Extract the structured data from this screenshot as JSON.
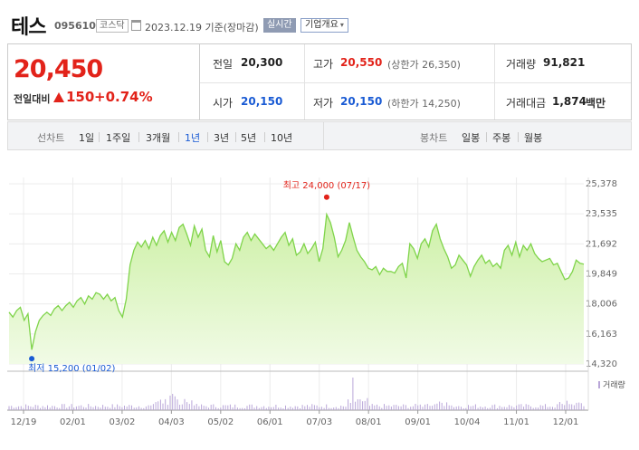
{
  "header": {
    "name": "테스",
    "code": "095610",
    "market": "코스닥",
    "date": "2023.12.19 기준(장마감)",
    "realtime": "실시간",
    "company_overview": "기업개요"
  },
  "summary": {
    "price": "20,450",
    "change_label": "전일대비",
    "change": "150",
    "change_pct": "+0.74%",
    "prev_close": {
      "label": "전일",
      "value": "20,300"
    },
    "high": {
      "label": "고가",
      "value": "20,550",
      "sub": "(상한가 26,350)"
    },
    "volume": {
      "label": "거래량",
      "value": "91,821"
    },
    "open": {
      "label": "시가",
      "value": "20,150"
    },
    "low": {
      "label": "저가",
      "value": "20,150",
      "sub": "(하한가 14,250)"
    },
    "amount": {
      "label": "거래대금",
      "value": "1,874",
      "unit": "백만"
    }
  },
  "periods": {
    "line_label": "선차트",
    "line_items": [
      "1일",
      "1주일",
      "3개월",
      "1년",
      "3년",
      "5년",
      "10년"
    ],
    "active": "1년",
    "candle_label": "봉차트",
    "candle_items": [
      "일봉",
      "주봉",
      "월봉"
    ]
  },
  "colors": {
    "up": "#e2231a",
    "down": "#1a5bd4",
    "line": "#7fd44a",
    "fill_top": "#cdf0a6",
    "fill_bottom": "#f1fbe6",
    "volume": "#b9a6d8"
  },
  "chart_data": {
    "type": "area",
    "ylim": [
      14320,
      25378
    ],
    "yticks": [
      "25,378",
      "23,535",
      "21,692",
      "19,849",
      "18,006",
      "16,163",
      "14,320"
    ],
    "xticks": [
      "12/19",
      "02/01",
      "03/02",
      "04/03",
      "05/02",
      "06/01",
      "07/03",
      "08/01",
      "09/01",
      "10/04",
      "11/01",
      "12/01"
    ],
    "volume_label": "거래량",
    "max_annotation": "최고 24,000 (07/17)",
    "min_annotation": "최저 15,200 (01/02)",
    "series": [
      {
        "values": [
          17500,
          17200,
          17600,
          17800,
          17000,
          17400,
          15200,
          16300,
          17000,
          17300,
          17500,
          17300,
          17700,
          17900,
          17600,
          17900,
          18100,
          17800,
          18200,
          18400,
          18000,
          18500,
          18300,
          18700,
          18600,
          18300,
          18600,
          18200,
          18400,
          17600,
          17200,
          18300,
          20400,
          21300,
          21800,
          21500,
          21900,
          21400,
          22100,
          21600,
          22200,
          22500,
          21800,
          22400,
          21900,
          22700,
          22900,
          22300,
          21600,
          22800,
          22100,
          22600,
          21300,
          20900,
          22200,
          21200,
          21900,
          20600,
          20400,
          20800,
          21700,
          21300,
          22100,
          22400,
          21900,
          22300,
          22000,
          21700,
          21400,
          21600,
          21300,
          21700,
          22100,
          22400,
          21600,
          22000,
          21000,
          21200,
          21700,
          21100,
          21400,
          21800,
          20600,
          21400,
          23500,
          23000,
          22100,
          20900,
          21300,
          21900,
          23000,
          22100,
          21300,
          20900,
          20600,
          20200,
          20100,
          20300,
          19800,
          20200,
          20000,
          20000,
          19900,
          20300,
          20500,
          19600,
          21700,
          21400,
          20800,
          21700,
          22000,
          21500,
          22500,
          22900,
          22000,
          21400,
          20900,
          20200,
          20400,
          21000,
          20700,
          20400,
          19700,
          20300,
          20700,
          21000,
          20500,
          20700,
          20300,
          20500,
          20200,
          21300,
          21600,
          21000,
          21800,
          20900,
          21600,
          21300,
          21700,
          21100,
          20800,
          20600,
          20700,
          20800,
          20400,
          20500,
          20000,
          19500,
          19600,
          20000,
          20700,
          20500,
          20450
        ]
      }
    ]
  }
}
